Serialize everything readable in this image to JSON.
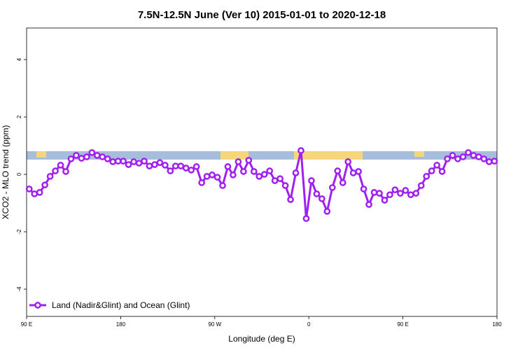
{
  "chart_data": {
    "type": "line",
    "title": "7.5N-12.5N June (Ver 10)   2015-01-01 to 2020-12-18",
    "x_label": "Longitude (deg E)",
    "y_label": "XCO2 - MLO trend (ppm)",
    "xlim": [
      90,
      540
    ],
    "ylim": [
      -4.95,
      5.1
    ],
    "xticks": [
      {
        "value": 90,
        "label": "90 E"
      },
      {
        "value": 180,
        "label": "180"
      },
      {
        "value": 270,
        "label": "90 W"
      },
      {
        "value": 360,
        "label": "0"
      },
      {
        "value": 450,
        "label": "90 E"
      },
      {
        "value": 540,
        "label": "180"
      }
    ],
    "yticks": [
      -4,
      -2,
      0,
      2,
      4
    ],
    "legend": "bottom-left",
    "x": [
      92.5,
      97.5,
      102.5,
      107.5,
      112.5,
      117.5,
      122.5,
      127.5,
      132.5,
      137.5,
      142.5,
      147.5,
      152.5,
      157.5,
      162.5,
      167.5,
      172.5,
      177.5,
      182.5,
      187.5,
      192.5,
      197.5,
      202.5,
      207.5,
      212.5,
      217.5,
      222.5,
      227.5,
      232.5,
      237.5,
      242.5,
      247.5,
      252.5,
      257.5,
      262.5,
      267.5,
      272.5,
      277.5,
      282.5,
      287.5,
      292.5,
      297.5,
      302.5,
      307.5,
      312.5,
      317.5,
      322.5,
      327.5,
      332.5,
      337.5,
      342.5,
      347.5,
      352.5,
      357.5,
      362.5,
      367.5,
      372.5,
      377.5,
      382.5,
      387.5,
      392.5,
      397.5,
      402.5,
      407.5,
      412.5,
      417.5,
      422.5,
      427.5,
      432.5,
      437.5,
      442.5,
      447.5,
      452.5,
      457.5,
      462.5,
      467.5,
      472.5,
      477.5,
      482.5,
      487.5,
      492.5,
      497.5,
      502.5,
      507.5,
      512.5,
      517.5,
      522.5,
      527.5,
      532.5,
      537.5
    ],
    "series": [
      {
        "name": "Land (Nadir&Glint) and Ocean (Glint)",
        "color": "#a020f0",
        "values": [
          -0.51,
          -0.68,
          -0.63,
          -0.37,
          -0.07,
          0.12,
          0.32,
          0.1,
          0.54,
          0.66,
          0.56,
          0.61,
          0.76,
          0.66,
          0.61,
          0.54,
          0.44,
          0.46,
          0.46,
          0.34,
          0.44,
          0.39,
          0.46,
          0.29,
          0.34,
          0.41,
          0.32,
          0.12,
          0.29,
          0.29,
          0.22,
          0.15,
          0.27,
          -0.29,
          -0.07,
          -0.02,
          -0.1,
          -0.39,
          0.27,
          -0.02,
          0.44,
          0.1,
          0.49,
          0.1,
          -0.07,
          0,
          0.12,
          -0.22,
          -0.15,
          -0.39,
          -0.88,
          0.05,
          0.83,
          -1.54,
          -0.22,
          -0.68,
          -0.85,
          -1.29,
          -0.46,
          0.12,
          -0.29,
          0.44,
          0.05,
          0.1,
          -0.51,
          -1.05,
          -0.63,
          -0.66,
          -0.9,
          -0.71,
          -0.54,
          -0.66,
          -0.56,
          -0.71,
          -0.66,
          -0.39,
          -0.07,
          0.12,
          0.32,
          0.1,
          0.54,
          0.66,
          0.54,
          0.61,
          0.76,
          0.66,
          0.61,
          0.54,
          0.44,
          0.46
        ]
      }
    ]
  }
}
